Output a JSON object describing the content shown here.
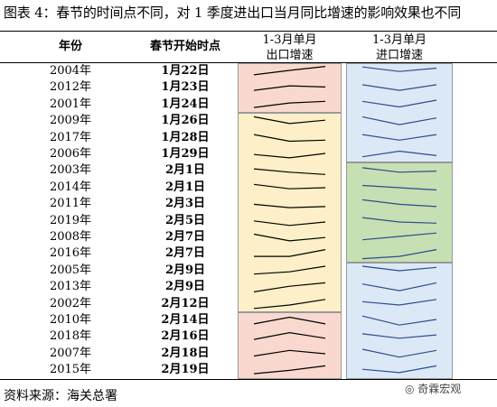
{
  "title": "图表 4：春节的时间点不同，对 1 季度进出口当月同比增速的影响效果也不同",
  "header": {
    "col_year": "年份",
    "col_date": "春节开始时点",
    "col_export_1": "1-3月单月",
    "col_export_2": "出口增速",
    "col_import_1": "1-3月单月",
    "col_import_2": "进口增速"
  },
  "rows": [
    {
      "year": "2004年",
      "date": "1月22日"
    },
    {
      "year": "2012年",
      "date": "1月23日"
    },
    {
      "year": "2001年",
      "date": "1月24日"
    },
    {
      "year": "2009年",
      "date": "1月26日"
    },
    {
      "year": "2017年",
      "date": "1月28日"
    },
    {
      "year": "2006年",
      "date": "1月29日"
    },
    {
      "year": "2003年",
      "date": "2月1日"
    },
    {
      "year": "2014年",
      "date": "2月1日"
    },
    {
      "year": "2011年",
      "date": "2月3日"
    },
    {
      "year": "2019年",
      "date": "2月5日"
    },
    {
      "year": "2008年",
      "date": "2月7日"
    },
    {
      "year": "2016年",
      "date": "2月7日"
    },
    {
      "year": "2005年",
      "date": "2月9日"
    },
    {
      "year": "2013年",
      "date": "2月9日"
    },
    {
      "year": "2002年",
      "date": "2月12日"
    },
    {
      "year": "2010年",
      "date": "2月14日"
    },
    {
      "year": "2018年",
      "date": "2月16日"
    },
    {
      "year": "2007年",
      "date": "2月18日"
    },
    {
      "year": "2015年",
      "date": "2月19日"
    }
  ],
  "colors": {
    "pink": "#f9d9cf",
    "yellow": "#fdf0c8",
    "blue": "#dbe9f7",
    "green": "#c6e0b4",
    "export_line": "#000000",
    "import_line": "#2f4b8c"
  },
  "export_groups": [
    {
      "rows": [
        0,
        2
      ],
      "color": "pink"
    },
    {
      "rows": [
        3,
        14
      ],
      "color": "yellow"
    },
    {
      "rows": [
        15,
        18
      ],
      "color": "pink"
    }
  ],
  "import_groups": [
    {
      "rows": [
        0,
        5
      ],
      "color": "blue"
    },
    {
      "rows": [
        6,
        11
      ],
      "color": "green"
    },
    {
      "rows": [
        12,
        18
      ],
      "color": "blue"
    }
  ],
  "export_sparks": [
    [
      0.2,
      0.6,
      0.95
    ],
    [
      0.3,
      0.7,
      0.6
    ],
    [
      0.25,
      0.65,
      0.8
    ],
    [
      0.9,
      0.3,
      0.6
    ],
    [
      0.8,
      0.2,
      0.3
    ],
    [
      0.5,
      0.2,
      0.6
    ],
    [
      0.7,
      0.4,
      0.2
    ],
    [
      0.8,
      0.4,
      0.5
    ],
    [
      0.5,
      0.2,
      0.3
    ],
    [
      0.5,
      0.1,
      0.4
    ],
    [
      0.8,
      0.2,
      0.5
    ],
    [
      0.3,
      0.3,
      0.9
    ],
    [
      0.2,
      0.4,
      0.9
    ],
    [
      0.1,
      0.6,
      0.9
    ],
    [
      0.1,
      0.4,
      0.9
    ],
    [
      0.2,
      0.8,
      0.2
    ],
    [
      0.3,
      0.9,
      0.4
    ],
    [
      0.3,
      0.8,
      0.5
    ],
    [
      0.2,
      0.5,
      0.9
    ]
  ],
  "import_sparks": [
    [
      0.9,
      0.5,
      0.8
    ],
    [
      0.8,
      0.3,
      0.8
    ],
    [
      0.8,
      0.3,
      0.9
    ],
    [
      0.9,
      0.2,
      0.8
    ],
    [
      0.8,
      0.3,
      0.8
    ],
    [
      0.3,
      0.8,
      0.4
    ],
    [
      0.8,
      0.4,
      0.5
    ],
    [
      0.7,
      0.5,
      0.3
    ],
    [
      0.9,
      0.5,
      0.3
    ],
    [
      0.8,
      0.4,
      0.3
    ],
    [
      0.3,
      0.6,
      0.9
    ],
    [
      0.1,
      0.3,
      0.9
    ],
    [
      0.9,
      0.5,
      0.8
    ],
    [
      0.8,
      0.2,
      0.9
    ],
    [
      0.7,
      0.4,
      0.9
    ],
    [
      0.9,
      0.1,
      0.6
    ],
    [
      0.8,
      0.4,
      0.7
    ],
    [
      0.9,
      0.2,
      0.8
    ],
    [
      0.6,
      0.3,
      0.9
    ]
  ],
  "footer": "资料来源：海关总署",
  "watermark": "奇霖宏观"
}
